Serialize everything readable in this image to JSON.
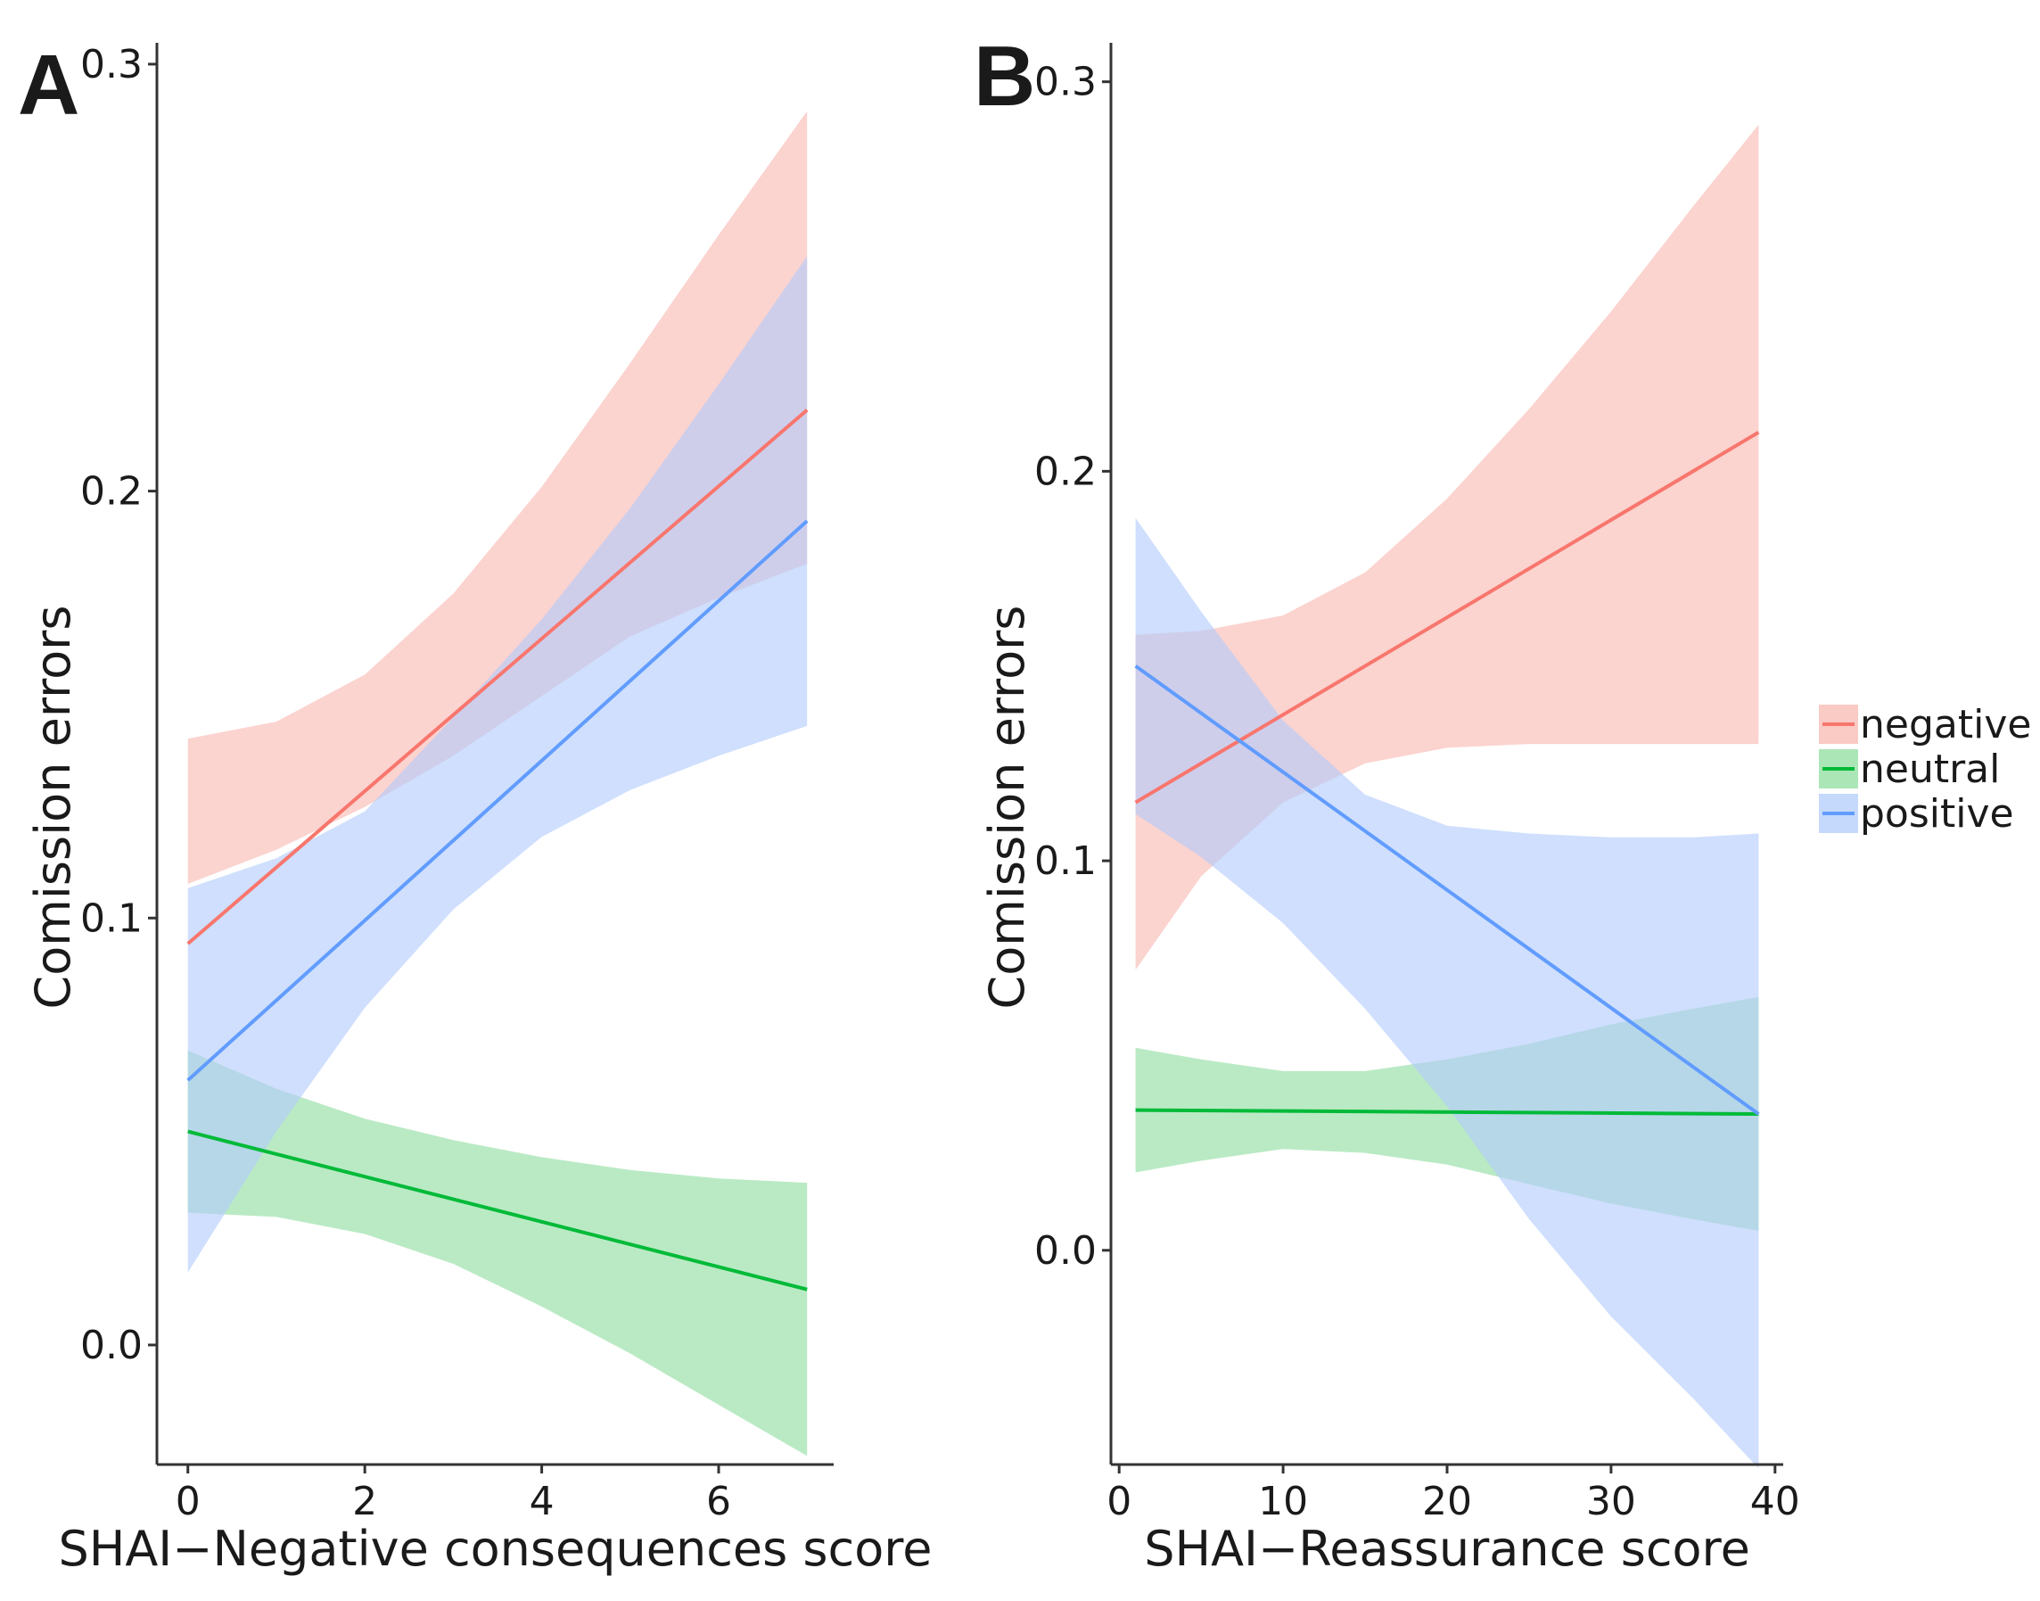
{
  "figure": {
    "legend": {
      "entries": [
        {
          "label": "negative",
          "color": "#f8766d",
          "fill": "#f8b8b2"
        },
        {
          "label": "neutral",
          "color": "#00ba38",
          "fill": "#8fdd9f"
        },
        {
          "label": "positive",
          "color": "#619cff",
          "fill": "#b2ccfb"
        }
      ],
      "placement": "right"
    }
  },
  "chart_data": [
    {
      "panel_label": "A",
      "type": "line",
      "xlabel": "SHAI−Negative consequences score",
      "ylabel": "Comission errors",
      "xlim": [
        -0.35,
        7.3
      ],
      "ylim": [
        -0.028,
        0.305
      ],
      "xticks": [
        0,
        2,
        4,
        6
      ],
      "yticks": [
        0.0,
        0.1,
        0.2,
        0.3
      ],
      "xtick_labels": [
        "0",
        "2",
        "4",
        "6"
      ],
      "ytick_labels": [
        "0.0",
        "0.1",
        "0.2",
        "0.3"
      ],
      "grid": false,
      "series": [
        {
          "name": "negative",
          "x": [
            0,
            7
          ],
          "y": [
            0.094,
            0.219
          ],
          "band_x": [
            0,
            1,
            2,
            3,
            4,
            5,
            6,
            7
          ],
          "band_lower": [
            0.108,
            0.116,
            0.126,
            0.138,
            0.152,
            0.166,
            0.175,
            0.183
          ],
          "band_upper": [
            0.142,
            0.146,
            0.157,
            0.176,
            0.201,
            0.23,
            0.26,
            0.289
          ]
        },
        {
          "name": "neutral",
          "x": [
            0,
            7
          ],
          "y": [
            0.05,
            0.013
          ],
          "band_x": [
            0,
            1,
            2,
            3,
            4,
            5,
            6,
            7
          ],
          "band_lower": [
            0.031,
            0.03,
            0.026,
            0.019,
            0.009,
            -0.002,
            -0.014,
            -0.026
          ],
          "band_upper": [
            0.069,
            0.06,
            0.053,
            0.048,
            0.044,
            0.041,
            0.039,
            0.038
          ]
        },
        {
          "name": "positive",
          "x": [
            0,
            7
          ],
          "y": [
            0.062,
            0.193
          ],
          "band_x": [
            0,
            1,
            2,
            3,
            4,
            5,
            6,
            7
          ],
          "band_lower": [
            0.017,
            0.05,
            0.079,
            0.102,
            0.119,
            0.13,
            0.138,
            0.145
          ],
          "band_upper": [
            0.107,
            0.114,
            0.125,
            0.147,
            0.17,
            0.196,
            0.225,
            0.255
          ]
        }
      ]
    },
    {
      "panel_label": "B",
      "type": "line",
      "xlabel": "SHAI−Reassurance score",
      "ylabel": "Comission errors",
      "xlim": [
        -0.5,
        40.5
      ],
      "ylim": [
        -0.055,
        0.31
      ],
      "xticks": [
        0,
        10,
        20,
        30,
        40
      ],
      "yticks": [
        0.0,
        0.1,
        0.2,
        0.3
      ],
      "xtick_labels": [
        "0",
        "10",
        "20",
        "30",
        "40"
      ],
      "ytick_labels": [
        "0.0",
        "0.1",
        "0.2",
        "0.3"
      ],
      "grid": false,
      "series": [
        {
          "name": "negative",
          "x": [
            1,
            39
          ],
          "y": [
            0.115,
            0.21
          ],
          "band_x": [
            1,
            5,
            10,
            15,
            20,
            25,
            30,
            35,
            39
          ],
          "band_lower": [
            0.072,
            0.096,
            0.115,
            0.125,
            0.129,
            0.13,
            0.13,
            0.13,
            0.13
          ],
          "band_upper": [
            0.158,
            0.159,
            0.163,
            0.174,
            0.193,
            0.216,
            0.241,
            0.268,
            0.289
          ]
        },
        {
          "name": "neutral",
          "x": [
            1,
            39
          ],
          "y": [
            0.036,
            0.035
          ],
          "band_x": [
            1,
            5,
            10,
            15,
            20,
            25,
            30,
            35,
            39
          ],
          "band_lower": [
            0.02,
            0.023,
            0.026,
            0.025,
            0.022,
            0.017,
            0.012,
            0.008,
            0.005
          ],
          "band_upper": [
            0.052,
            0.049,
            0.046,
            0.046,
            0.049,
            0.053,
            0.058,
            0.062,
            0.065
          ]
        },
        {
          "name": "positive",
          "x": [
            1,
            39
          ],
          "y": [
            0.15,
            0.035
          ],
          "band_x": [
            1,
            5,
            10,
            15,
            20,
            25,
            30,
            35,
            39
          ],
          "band_lower": [
            0.112,
            0.101,
            0.084,
            0.062,
            0.037,
            0.008,
            -0.017,
            -0.038,
            -0.056
          ],
          "band_upper": [
            0.188,
            0.164,
            0.136,
            0.117,
            0.109,
            0.107,
            0.106,
            0.106,
            0.107
          ]
        }
      ]
    }
  ]
}
